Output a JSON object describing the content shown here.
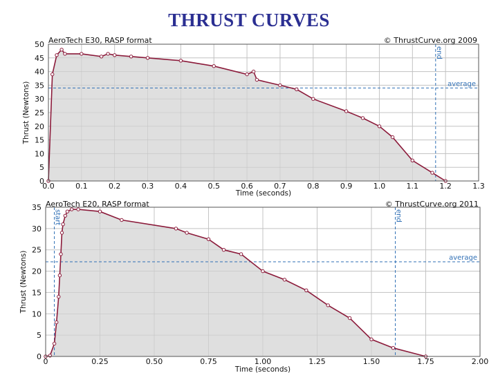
{
  "slide": {
    "title": "THRUST CURVES"
  },
  "chart_data": [
    {
      "type": "area",
      "header_left": "AeroTech E30, RASP format",
      "header_right": "© ThrustCurve.org 2009",
      "xlabel": "Time (seconds)",
      "ylabel": "Thrust (Newtons)",
      "xlim": [
        0,
        1.3
      ],
      "ylim": [
        0,
        50
      ],
      "xticks": [
        "0.0",
        "0.1",
        "0.2",
        "0.3",
        "0.4",
        "0.5",
        "0.6",
        "0.7",
        "0.8",
        "0.9",
        "1.0",
        "1.1",
        "1.2",
        "1.3"
      ],
      "xtick_values": [
        0,
        0.1,
        0.2,
        0.3,
        0.4,
        0.5,
        0.6,
        0.7,
        0.8,
        0.9,
        1.0,
        1.1,
        1.2,
        1.3
      ],
      "yticks": [
        "0",
        "5",
        "10",
        "15",
        "20",
        "25",
        "30",
        "35",
        "40",
        "45",
        "50"
      ],
      "ytick_values": [
        0,
        5,
        10,
        15,
        20,
        25,
        30,
        35,
        40,
        45,
        50
      ],
      "grid": true,
      "average": {
        "label": "average",
        "value": 34
      },
      "markers": [
        {
          "label": "end",
          "value": 1.17
        }
      ],
      "x": [
        0,
        0.012,
        0.025,
        0.04,
        0.05,
        0.1,
        0.16,
        0.18,
        0.2,
        0.25,
        0.3,
        0.4,
        0.5,
        0.6,
        0.62,
        0.63,
        0.7,
        0.75,
        0.8,
        0.9,
        0.95,
        1.0,
        1.04,
        1.1,
        1.16,
        1.2
      ],
      "y": [
        0,
        39,
        46,
        48,
        46.5,
        46.5,
        45.5,
        46.5,
        46,
        45.5,
        45,
        44,
        42,
        39,
        40,
        37,
        35,
        33.5,
        30,
        25.5,
        23,
        20,
        16,
        7.5,
        3,
        0
      ]
    },
    {
      "type": "area",
      "header_left": "AeroTech E20, RASP format",
      "header_right": "© ThrustCurve.org 2011",
      "xlabel": "Time (seconds)",
      "ylabel": "Thrust (Newtons)",
      "xlim": [
        0,
        2.0
      ],
      "ylim": [
        0,
        35
      ],
      "xticks": [
        "0",
        "0.25",
        "0.50",
        "0.75",
        "1.00",
        "1.25",
        "1.50",
        "1.75",
        "2.00"
      ],
      "xtick_values": [
        0,
        0.25,
        0.5,
        0.75,
        1.0,
        1.25,
        1.5,
        1.75,
        2.0
      ],
      "yticks": [
        "0",
        "5",
        "10",
        "15",
        "20",
        "25",
        "30",
        "35"
      ],
      "ytick_values": [
        0,
        5,
        10,
        15,
        20,
        25,
        30,
        35
      ],
      "grid": true,
      "average": {
        "label": "average",
        "value": 22.2
      },
      "markers": [
        {
          "label": "start",
          "value": 0.04
        },
        {
          "label": "end",
          "value": 1.61
        }
      ],
      "x": [
        0,
        0.02,
        0.04,
        0.05,
        0.06,
        0.065,
        0.07,
        0.075,
        0.08,
        0.09,
        0.1,
        0.12,
        0.15,
        0.25,
        0.35,
        0.6,
        0.65,
        0.75,
        0.82,
        0.9,
        1.0,
        1.1,
        1.2,
        1.3,
        1.4,
        1.5,
        1.6,
        1.75
      ],
      "y": [
        0,
        0.2,
        3,
        8,
        14,
        19,
        24,
        29,
        31,
        33,
        34,
        34.5,
        34.5,
        34,
        32,
        30,
        29,
        27.5,
        25,
        24,
        20,
        18,
        15.5,
        12,
        9,
        4,
        2,
        0
      ]
    }
  ]
}
